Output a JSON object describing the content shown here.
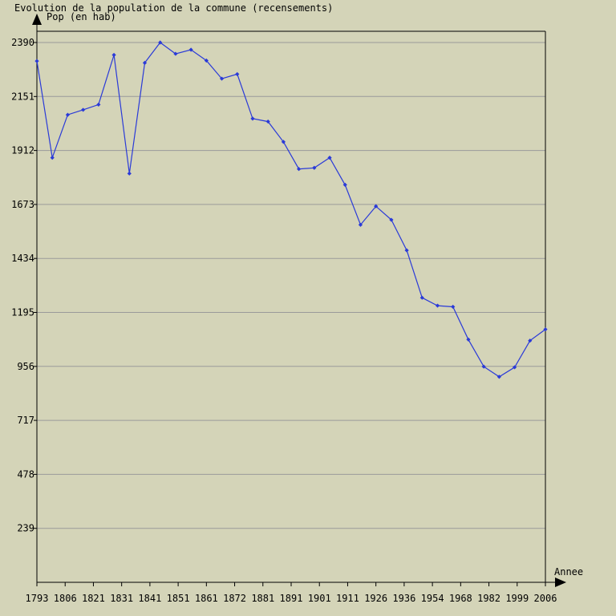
{
  "chart_data": {
    "type": "line",
    "title": "Evolution de la population de la commune (recensements)",
    "ylabel": "Pop (en hab)",
    "xlabel": "Annee",
    "yticks": [
      239,
      478,
      717,
      956,
      1195,
      1434,
      1673,
      1912,
      2151,
      2390
    ],
    "ylim": [
      0,
      2390
    ],
    "xticks": [
      "1793",
      "1806",
      "1821",
      "1831",
      "1841",
      "1851",
      "1861",
      "1872",
      "1881",
      "1891",
      "1901",
      "1911",
      "1926",
      "1936",
      "1954",
      "1968",
      "1982",
      "1999",
      "2006"
    ],
    "grid": true,
    "colors": {
      "line": "#2a3ad8",
      "background": "#d4d4b8",
      "grid": "#9a9a9a",
      "axis": "#000000"
    },
    "series": [
      {
        "values": [
          2308,
          1880,
          2070,
          2092,
          2115,
          2335,
          1810,
          2300,
          2390,
          2340,
          2358,
          2310,
          2230,
          2250,
          2053,
          2040,
          1950,
          1830,
          1835,
          1880,
          1760,
          1583,
          1665,
          1605,
          1470,
          1260,
          1225,
          1220,
          1075,
          955,
          910,
          952,
          1070,
          1120
        ]
      }
    ]
  }
}
